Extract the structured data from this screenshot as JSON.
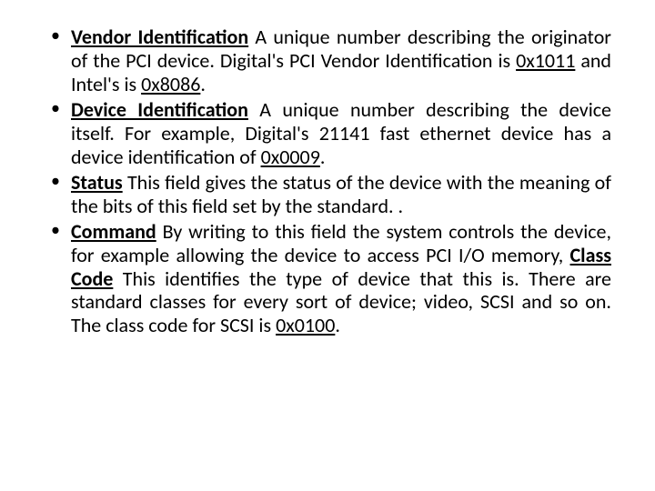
{
  "bullets": [
    {
      "term": "Vendor Identification",
      "body_before": " A unique number describing the originator of the PCI device. Digital's PCI Vendor Identification is ",
      "u1": "0x1011",
      "mid": " and Intel's is ",
      "u2": "0x8086",
      "body_after": "."
    },
    {
      "term": "Device Identification",
      "body_before": " A unique number describing the device itself. For example, Digital's 21141 fast ethernet device has a device identification of ",
      "u1": "0x0009",
      "body_after": "."
    },
    {
      "term": "Status",
      "body_before": " This field gives the status of the device with the meaning of the bits of this field set by the standard. ."
    },
    {
      "term": "Command",
      "body_before": " By writing to this field the system controls the device, for example allowing the device to access PCI I/O memory, ",
      "inline_term": "Class Code",
      "mid": " This identifies the type of device that this is. There are standard classes for every sort of device; video, SCSI and so on. The class code for SCSI is ",
      "u1": "0x0100",
      "body_after": "."
    }
  ],
  "style": {
    "font_size_pt": 22,
    "text_color": "#000000",
    "background": "#ffffff",
    "bullet_char": "•",
    "text_align": "justify"
  }
}
